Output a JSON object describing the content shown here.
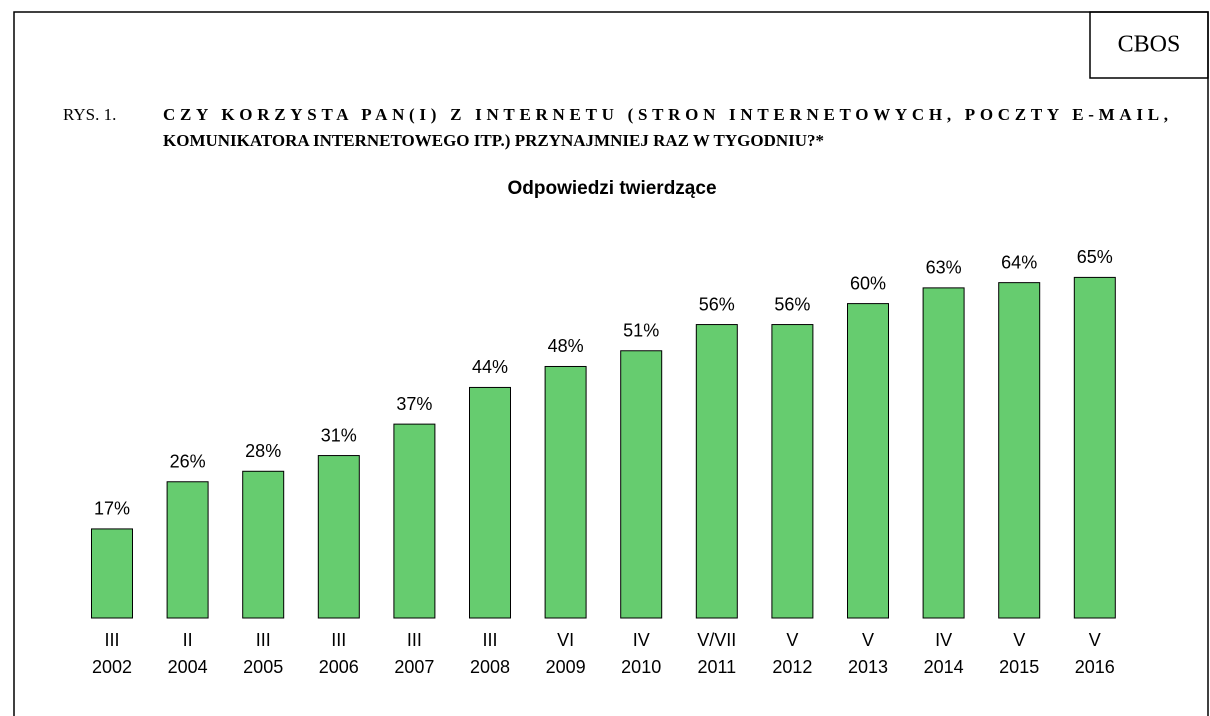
{
  "chart_data": {
    "type": "bar",
    "source": "CBOS",
    "figure_label": "RYS. 1.",
    "title": [
      "CZY KORZYSTA PAN(I) Z INTERNETU (STRON INTERNETOWYCH, POCZTY E-MAIL,",
      "KOMUNIKATORA INTERNETOWEGO ITP.) PRZYNAJMNIEJ RAZ W TYGODNIU?*"
    ],
    "subtitle": "Odpowiedzi twierdzące",
    "categories": [
      [
        "III",
        "2002"
      ],
      [
        "II",
        "2004"
      ],
      [
        "III",
        "2005"
      ],
      [
        "III",
        "2006"
      ],
      [
        "III",
        "2007"
      ],
      [
        "III",
        "2008"
      ],
      [
        "VI",
        "2009"
      ],
      [
        "IV",
        "2010"
      ],
      [
        "V/VII",
        "2011"
      ],
      [
        "V",
        "2012"
      ],
      [
        "V",
        "2013"
      ],
      [
        "IV",
        "2014"
      ],
      [
        "V",
        "2015"
      ],
      [
        "V",
        "2016"
      ]
    ],
    "values": [
      17,
      26,
      28,
      31,
      37,
      44,
      48,
      51,
      56,
      56,
      60,
      63,
      64,
      65
    ],
    "value_labels": [
      "17%",
      "26%",
      "28%",
      "31%",
      "37%",
      "44%",
      "48%",
      "51%",
      "56%",
      "56%",
      "60%",
      "63%",
      "64%",
      "65%"
    ],
    "color": "#66cc6f"
  }
}
